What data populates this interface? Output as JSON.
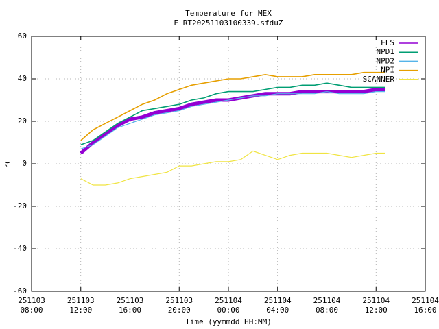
{
  "chart_data": {
    "type": "line",
    "title": "Temperature for MEX",
    "subtitle": "E_RT20251103100339.sfduZ",
    "x_label": "Time (yymmdd HH:MM)",
    "y_label": "°C",
    "grid": true,
    "legend": "top-right",
    "xlim": [
      "2025-11-03T08:00",
      "2025-11-04T16:00"
    ],
    "ylim": [
      -60,
      60
    ],
    "yticks": [
      -60,
      -40,
      -20,
      0,
      20,
      40,
      60
    ],
    "xticks": [
      {
        "value": "2025-11-03T08:00",
        "label": [
          "251103",
          "08:00"
        ]
      },
      {
        "value": "2025-11-03T12:00",
        "label": [
          "251103",
          "12:00"
        ]
      },
      {
        "value": "2025-11-03T16:00",
        "label": [
          "251103",
          "16:00"
        ]
      },
      {
        "value": "2025-11-03T20:00",
        "label": [
          "251103",
          "20:00"
        ]
      },
      {
        "value": "2025-11-04T00:00",
        "label": [
          "251104",
          "00:00"
        ]
      },
      {
        "value": "2025-11-04T04:00",
        "label": [
          "251104",
          "04:00"
        ]
      },
      {
        "value": "2025-11-04T08:00",
        "label": [
          "251104",
          "08:00"
        ]
      },
      {
        "value": "2025-11-04T12:00",
        "label": [
          "251104",
          "12:00"
        ]
      },
      {
        "value": "2025-11-04T16:00",
        "label": [
          "251104",
          "16:00"
        ]
      }
    ],
    "x": [
      "2025-11-03T12:00",
      "2025-11-03T13:00",
      "2025-11-03T14:00",
      "2025-11-03T15:00",
      "2025-11-03T16:00",
      "2025-11-03T17:00",
      "2025-11-03T18:00",
      "2025-11-03T19:00",
      "2025-11-03T20:00",
      "2025-11-03T21:00",
      "2025-11-03T22:00",
      "2025-11-03T23:00",
      "2025-11-04T00:00",
      "2025-11-04T01:00",
      "2025-11-04T02:00",
      "2025-11-04T03:00",
      "2025-11-04T04:00",
      "2025-11-04T05:00",
      "2025-11-04T06:00",
      "2025-11-04T07:00",
      "2025-11-04T08:00",
      "2025-11-04T09:00",
      "2025-11-04T10:00",
      "2025-11-04T11:00",
      "2025-11-04T12:00",
      "2025-11-04T12:45"
    ],
    "series": [
      {
        "name": "ELS",
        "color": "#9400d3",
        "values": [
          5,
          10,
          14,
          18,
          21,
          22,
          24,
          25,
          26,
          28,
          29,
          30,
          30,
          31,
          32,
          33,
          33,
          33,
          34,
          34,
          34,
          34,
          34,
          34,
          35,
          35
        ]
      },
      {
        "name": "NPD1",
        "color": "#009e73",
        "values": [
          9,
          11,
          15,
          19,
          22,
          25,
          26,
          27,
          28,
          30,
          31,
          33,
          34,
          34,
          34,
          35,
          36,
          36,
          37,
          37,
          38,
          37,
          36,
          36,
          36,
          36
        ]
      },
      {
        "name": "NPD2",
        "color": "#56b4e9",
        "values": [
          7,
          9,
          13,
          17,
          19,
          21,
          23,
          24,
          25,
          27,
          28,
          29,
          30,
          31,
          32,
          32,
          33,
          33,
          33,
          33,
          34,
          33,
          33,
          33,
          34,
          34
        ]
      },
      {
        "name": "NPI",
        "color": "#e69f00",
        "values": [
          11,
          16,
          19,
          22,
          25,
          28,
          30,
          33,
          35,
          37,
          38,
          39,
          40,
          40,
          41,
          42,
          41,
          41,
          41,
          42,
          42,
          42,
          42,
          43,
          43,
          43
        ]
      },
      {
        "name": "SCANNER",
        "color": "#f0e442",
        "values": [
          -7,
          -10,
          -10,
          -9,
          -7,
          -6,
          -5,
          -4,
          -1,
          -1,
          0,
          1,
          1,
          2,
          6,
          4,
          2,
          4,
          5,
          5,
          5,
          4,
          3,
          4,
          5,
          5
        ]
      }
    ]
  }
}
